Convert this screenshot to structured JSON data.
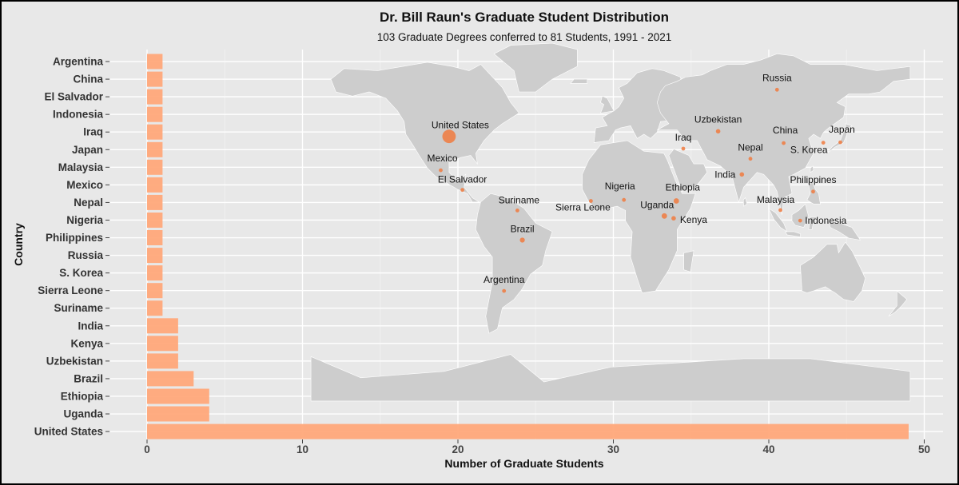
{
  "chart_data": {
    "type": "bar",
    "orientation": "horizontal",
    "title": "Dr. Bill Raun's Graduate Student Distribution",
    "subtitle": "103 Graduate Degrees conferred to 81 Students, 1991 - 2021",
    "xlabel": "Number of Graduate Students",
    "ylabel": "Country",
    "xlim": [
      0,
      50
    ],
    "xticks": [
      0,
      10,
      20,
      30,
      40,
      50
    ],
    "grid": true,
    "bar_color": "#ffa87a",
    "background_color": "#e8e8e8",
    "categories": [
      "Argentina",
      "China",
      "El Salvador",
      "Indonesia",
      "Iraq",
      "Japan",
      "Malaysia",
      "Mexico",
      "Nepal",
      "Nigeria",
      "Philippines",
      "Russia",
      "S. Korea",
      "Sierra Leone",
      "Suriname",
      "India",
      "Kenya",
      "Uzbekistan",
      "Brazil",
      "Ethiopia",
      "Uganda",
      "United States"
    ],
    "values": [
      1,
      1,
      1,
      1,
      1,
      1,
      1,
      1,
      1,
      1,
      1,
      1,
      1,
      1,
      1,
      2,
      2,
      2,
      3,
      4,
      4,
      49
    ]
  },
  "inset_map": {
    "type": "world-map-bubbles",
    "land_color": "#cdcdcd",
    "marker_color": "#f07a3e",
    "markers": [
      {
        "label": "United States",
        "lon": -97,
        "lat": 39,
        "value": 49
      },
      {
        "label": "Mexico",
        "lon": -102,
        "lat": 23,
        "value": 1
      },
      {
        "label": "El Salvador",
        "lon": -89,
        "lat": 13.7,
        "value": 1
      },
      {
        "label": "Suriname",
        "lon": -56,
        "lat": 4,
        "value": 1
      },
      {
        "label": "Brazil",
        "lon": -53,
        "lat": -10,
        "value": 3
      },
      {
        "label": "Argentina",
        "lon": -64,
        "lat": -34,
        "value": 1
      },
      {
        "label": "Sierra Leone",
        "lon": -11.8,
        "lat": 8.5,
        "value": 1
      },
      {
        "label": "Nigeria",
        "lon": 8,
        "lat": 9,
        "value": 1
      },
      {
        "label": "Ethiopia",
        "lon": 39.5,
        "lat": 8.5,
        "value": 4
      },
      {
        "label": "Uganda",
        "lon": 32.3,
        "lat": 1.4,
        "value": 4
      },
      {
        "label": "Kenya",
        "lon": 37.9,
        "lat": 0.3,
        "value": 2
      },
      {
        "label": "Iraq",
        "lon": 43.7,
        "lat": 33.2,
        "value": 1
      },
      {
        "label": "Uzbekistan",
        "lon": 64.6,
        "lat": 41.4,
        "value": 2
      },
      {
        "label": "Russia",
        "lon": 100,
        "lat": 61,
        "value": 1
      },
      {
        "label": "Nepal",
        "lon": 84,
        "lat": 28.4,
        "value": 1
      },
      {
        "label": "India",
        "lon": 78.9,
        "lat": 21,
        "value": 2
      },
      {
        "label": "China",
        "lon": 104,
        "lat": 35.8,
        "value": 1
      },
      {
        "label": "S. Korea",
        "lon": 127.8,
        "lat": 36,
        "value": 1
      },
      {
        "label": "Japan",
        "lon": 138,
        "lat": 36.2,
        "value": 1
      },
      {
        "label": "Philippines",
        "lon": 121.7,
        "lat": 12.9,
        "value": 1
      },
      {
        "label": "Malaysia",
        "lon": 102,
        "lat": 4.2,
        "value": 1
      },
      {
        "label": "Indonesia",
        "lon": 113.9,
        "lat": -0.8,
        "value": 1
      }
    ]
  }
}
